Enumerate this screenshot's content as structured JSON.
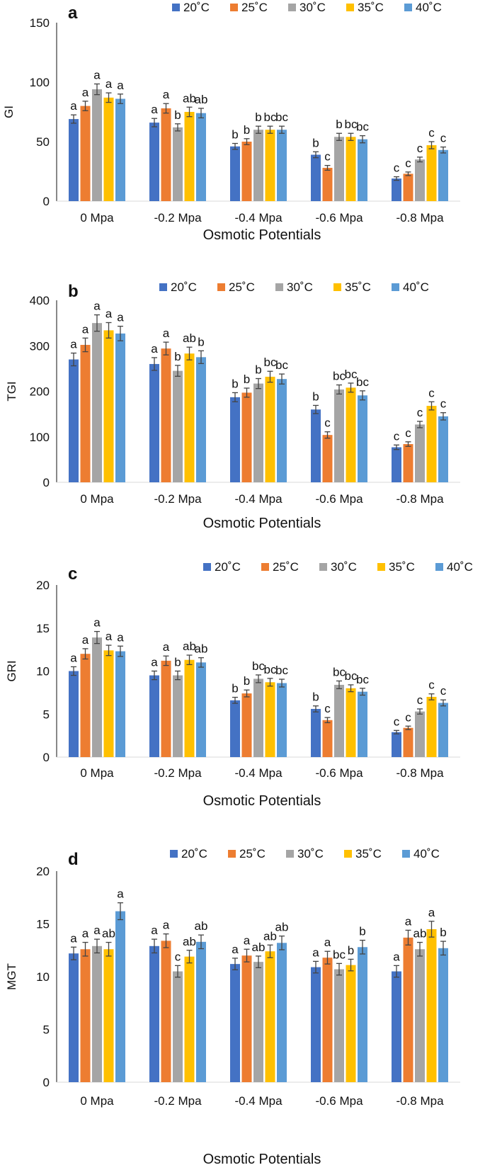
{
  "legend_labels": [
    "20˚C",
    "25˚C",
    "30˚C",
    "35˚C",
    "40˚C"
  ],
  "colors": [
    "#4472C4",
    "#ED7D31",
    "#A5A5A5",
    "#FFC000",
    "#5B9BD5"
  ],
  "chart_data": [
    {
      "type": "bar",
      "panel_letter": "a",
      "ylabel": "GI",
      "xlabel": "Osmotic Potentials",
      "ylim": [
        0,
        150
      ],
      "yticks": [
        0,
        50,
        100,
        150
      ],
      "categories": [
        "0 Mpa",
        "-0.2 Mpa",
        "-0.4 Mpa",
        "-0.6 Mpa",
        "-0.8 Mpa"
      ],
      "series": [
        {
          "name": "20˚C",
          "values": [
            69,
            66,
            46,
            39,
            19
          ],
          "errors": [
            3.5,
            3.5,
            2.5,
            2.5,
            1.5
          ],
          "letters": [
            "a",
            "a",
            "b",
            "b",
            "c"
          ]
        },
        {
          "name": "25˚C",
          "values": [
            80,
            78,
            50,
            28,
            23
          ],
          "errors": [
            4,
            4,
            2.5,
            2,
            1.5
          ],
          "letters": [
            "a",
            "a",
            "b",
            "c",
            "c"
          ]
        },
        {
          "name": "30˚C",
          "values": [
            94,
            62,
            60,
            54,
            35
          ],
          "errors": [
            4.5,
            3,
            3,
            3,
            2
          ],
          "letters": [
            "a",
            "b",
            "b",
            "b",
            "c"
          ]
        },
        {
          "name": "35˚C",
          "values": [
            87,
            75,
            60,
            54,
            47
          ],
          "errors": [
            4,
            4,
            3,
            3,
            3
          ],
          "letters": [
            "a",
            "ab",
            "bc",
            "bc",
            "c"
          ]
        },
        {
          "name": "40˚C",
          "values": [
            86,
            74,
            60,
            52,
            43
          ],
          "errors": [
            4,
            4,
            3,
            3,
            2.5
          ],
          "letters": [
            "a",
            "ab",
            "bc",
            "bc",
            "c"
          ]
        }
      ]
    },
    {
      "type": "bar",
      "panel_letter": "b",
      "ylabel": "TGI",
      "xlabel": "Osmotic Potentials",
      "ylim": [
        0,
        400
      ],
      "yticks": [
        0,
        100,
        200,
        300,
        400
      ],
      "categories": [
        "0 Mpa",
        "-0.2 Mpa",
        "-0.4 Mpa",
        "-0.6 Mpa",
        "-0.8 Mpa"
      ],
      "series": [
        {
          "name": "20˚C",
          "values": [
            270,
            260,
            187,
            160,
            77
          ],
          "errors": [
            14,
            14,
            10,
            9,
            5
          ],
          "letters": [
            "a",
            "a",
            "b",
            "b",
            "c"
          ]
        },
        {
          "name": "25˚C",
          "values": [
            302,
            294,
            197,
            104,
            84
          ],
          "errors": [
            15,
            14,
            10,
            7,
            5
          ],
          "letters": [
            "a",
            "a",
            "b",
            "c",
            "c"
          ]
        },
        {
          "name": "30˚C",
          "values": [
            350,
            245,
            217,
            204,
            127
          ],
          "errors": [
            18,
            12,
            11,
            10,
            7
          ],
          "letters": [
            "a",
            "b",
            "b",
            "bc",
            "c"
          ]
        },
        {
          "name": "35˚C",
          "values": [
            334,
            283,
            232,
            208,
            168
          ],
          "errors": [
            17,
            14,
            12,
            10,
            9
          ],
          "letters": [
            "a",
            "ab",
            "bc",
            "bc",
            "c"
          ]
        },
        {
          "name": "40˚C",
          "values": [
            327,
            275,
            227,
            191,
            145
          ],
          "errors": [
            16,
            14,
            11,
            10,
            8
          ],
          "letters": [
            "a",
            "b",
            "bc",
            "bc",
            "c"
          ]
        }
      ]
    },
    {
      "type": "bar",
      "panel_letter": "c",
      "ylabel": "GRI",
      "xlabel": "Osmotic Potentials",
      "ylim": [
        0,
        20
      ],
      "yticks": [
        0,
        5,
        10,
        15,
        20
      ],
      "categories": [
        "0 Mpa",
        "-0.2 Mpa",
        "-0.4 Mpa",
        "-0.6 Mpa",
        "-0.8 Mpa"
      ],
      "series": [
        {
          "name": "20˚C",
          "values": [
            10.0,
            9.5,
            6.6,
            5.6,
            2.9
          ],
          "errors": [
            0.5,
            0.5,
            0.35,
            0.35,
            0.2
          ],
          "letters": [
            "a",
            "a",
            "b",
            "b",
            "c"
          ]
        },
        {
          "name": "25˚C",
          "values": [
            12.0,
            11.2,
            7.4,
            4.3,
            3.4
          ],
          "errors": [
            0.6,
            0.55,
            0.4,
            0.3,
            0.2
          ],
          "letters": [
            "a",
            "a",
            "b",
            "c",
            "c"
          ]
        },
        {
          "name": "30˚C",
          "values": [
            13.9,
            9.5,
            9.1,
            8.4,
            5.3
          ],
          "errors": [
            0.7,
            0.5,
            0.45,
            0.45,
            0.3
          ],
          "letters": [
            "a",
            "b",
            "bc",
            "bc",
            "c"
          ]
        },
        {
          "name": "35˚C",
          "values": [
            12.4,
            11.3,
            8.7,
            8.0,
            7.0
          ],
          "errors": [
            0.6,
            0.55,
            0.45,
            0.4,
            0.35
          ],
          "letters": [
            "a",
            "ab",
            "bc",
            "bc",
            "c"
          ]
        },
        {
          "name": "40˚C",
          "values": [
            12.3,
            11.0,
            8.6,
            7.6,
            6.3
          ],
          "errors": [
            0.6,
            0.55,
            0.45,
            0.4,
            0.35
          ],
          "letters": [
            "a",
            "ab",
            "bc",
            "bc",
            "c"
          ]
        }
      ]
    },
    {
      "type": "bar",
      "panel_letter": "d",
      "ylabel": "MGT",
      "xlabel": "Osmotic Potentials",
      "ylim": [
        0,
        20
      ],
      "yticks": [
        0,
        5,
        10,
        15,
        20
      ],
      "categories": [
        "0 Mpa",
        "-0.2 Mpa",
        "-0.4 Mpa",
        "-0.6 Mpa",
        "-0.8 Mpa"
      ],
      "series": [
        {
          "name": "20˚C",
          "values": [
            12.2,
            12.9,
            11.2,
            10.9,
            10.5
          ],
          "errors": [
            0.6,
            0.65,
            0.55,
            0.55,
            0.55
          ],
          "letters": [
            "a",
            "a",
            "a",
            "a",
            "a"
          ]
        },
        {
          "name": "25˚C",
          "values": [
            12.6,
            13.4,
            12.0,
            11.8,
            13.7
          ],
          "errors": [
            0.65,
            0.65,
            0.6,
            0.6,
            0.7
          ],
          "letters": [
            "a",
            "a",
            "a",
            "a",
            "a"
          ]
        },
        {
          "name": "30˚C",
          "values": [
            12.9,
            10.5,
            11.4,
            10.7,
            12.6
          ],
          "errors": [
            0.65,
            0.55,
            0.55,
            0.55,
            0.65
          ],
          "letters": [
            "a",
            "c",
            "ab",
            "bc",
            "ab"
          ]
        },
        {
          "name": "35˚C",
          "values": [
            12.6,
            11.9,
            12.4,
            11.1,
            14.5
          ],
          "errors": [
            0.65,
            0.6,
            0.6,
            0.55,
            0.75
          ],
          "letters": [
            "ab",
            "ab",
            "ab",
            "b",
            "a"
          ]
        },
        {
          "name": "40˚C",
          "values": [
            16.2,
            13.3,
            13.2,
            12.8,
            12.7
          ],
          "errors": [
            0.8,
            0.65,
            0.65,
            0.65,
            0.65
          ],
          "letters": [
            "a",
            "ab",
            "ab",
            "b",
            "b"
          ]
        }
      ]
    }
  ]
}
